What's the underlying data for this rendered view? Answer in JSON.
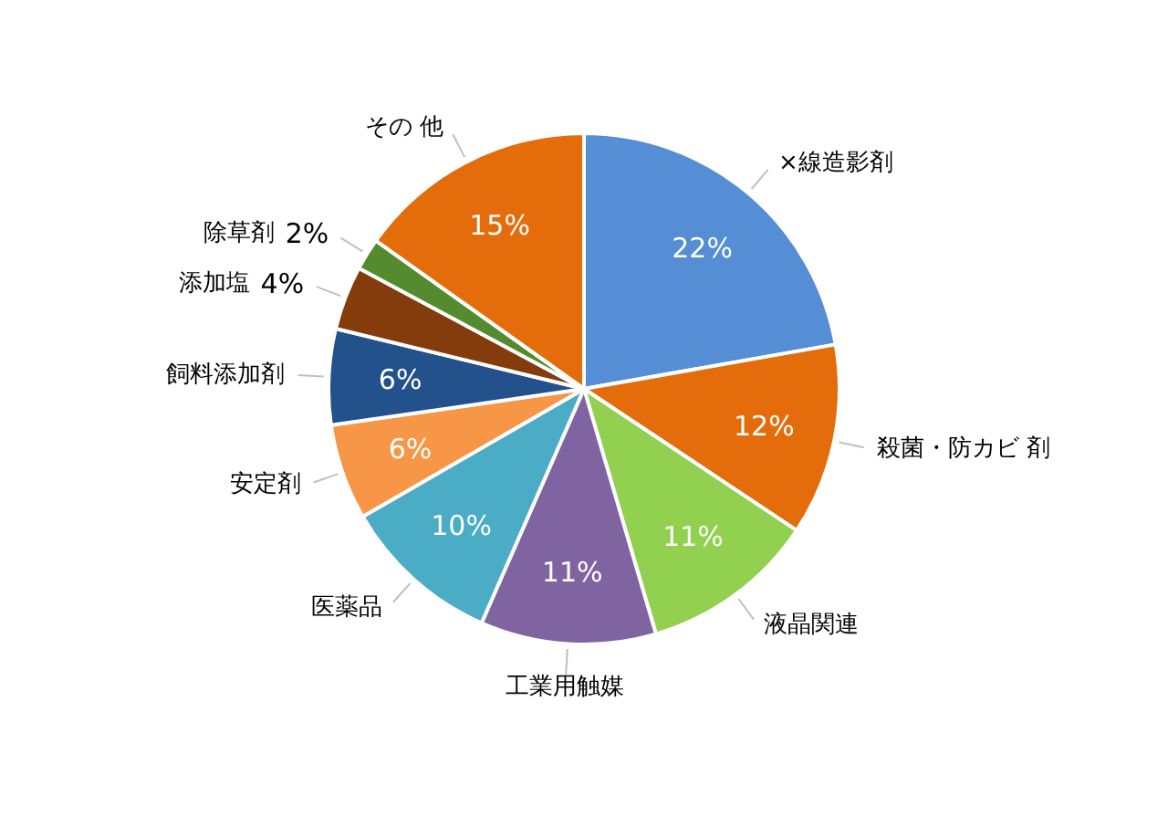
{
  "chart_data": {
    "type": "pie",
    "categories": [
      "×線造影剤",
      "殺菌・防カビ 剤",
      "液晶関連",
      "工業用触媒",
      "医薬品",
      "安定剤",
      "飼料添加剤",
      "添加塩",
      "除草剤",
      "その 他"
    ],
    "values": [
      22,
      12,
      11,
      11,
      10,
      6,
      6,
      4,
      2,
      15
    ],
    "value_labels": [
      "22%",
      "12%",
      "11%",
      "11%",
      "10%",
      "6%",
      "6%",
      "4%",
      "2%",
      "15%"
    ],
    "colors": [
      "#558ed5",
      "#e46c0a",
      "#92d050",
      "#8064a2",
      "#4bacc6",
      "#f79646",
      "#23518c",
      "#843c0c",
      "#558b2f",
      "#e46c0a"
    ]
  }
}
